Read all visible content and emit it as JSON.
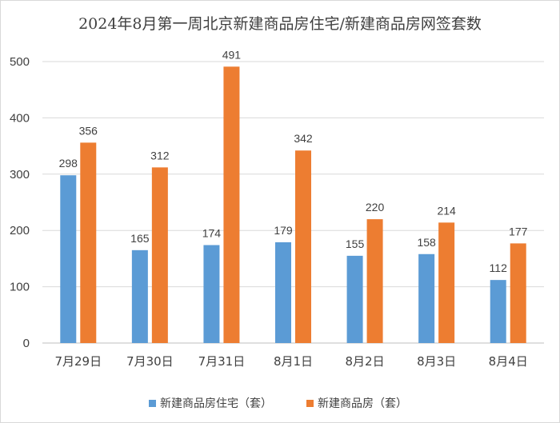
{
  "chart_data": {
    "type": "bar",
    "title": "2024年8月第一周北京新建商品房住宅/新建商品房网签套数",
    "categories": [
      "7月29日",
      "7月30日",
      "7月31日",
      "8月1日",
      "8月2日",
      "8月3日",
      "8月4日"
    ],
    "series": [
      {
        "name": "新建商品房住宅（套）",
        "color": "#5b9bd5",
        "values": [
          298,
          165,
          174,
          179,
          155,
          158,
          112
        ]
      },
      {
        "name": "新建商品房（套）",
        "color": "#ed7d31",
        "values": [
          356,
          312,
          491,
          342,
          220,
          214,
          177
        ]
      }
    ],
    "yticks": [
      0,
      100,
      200,
      300,
      400,
      500
    ],
    "ylim": [
      0,
      500
    ],
    "xlabel": "",
    "ylabel": "",
    "grid": true,
    "legend_position": "bottom"
  }
}
